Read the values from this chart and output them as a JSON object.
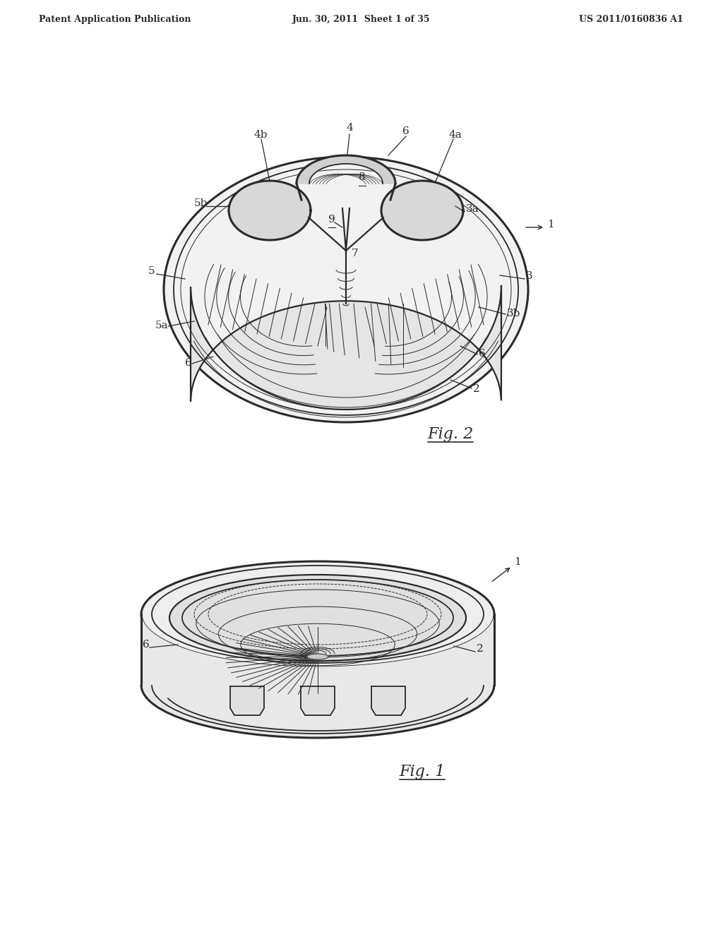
{
  "bg_color": "#ffffff",
  "line_color": "#2a2a2a",
  "line_color_light": "#555555",
  "header_left": "Patent Application Publication",
  "header_mid": "Jun. 30, 2011  Sheet 1 of 35",
  "header_right": "US 2011/0160836 A1",
  "lw": 1.3,
  "lw_thin": 0.7,
  "lw_thick": 2.2,
  "lw_med": 1.6
}
